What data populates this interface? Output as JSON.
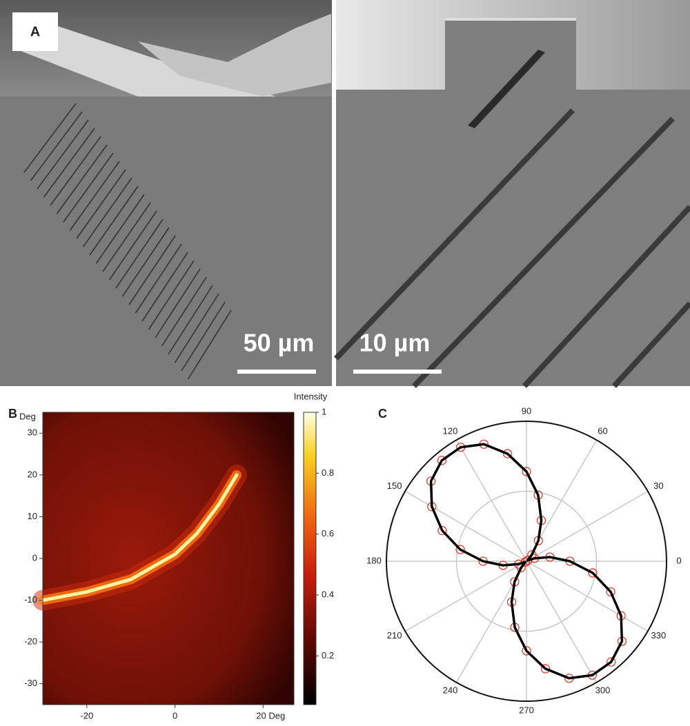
{
  "panels": {
    "a": "A",
    "b": "B",
    "c": "C"
  },
  "sem": {
    "left_scale": "50 µm",
    "right_scale": "10 µm"
  },
  "chart_data": [
    {
      "type": "heatmap",
      "colorbar_label": "Intensity",
      "ylabel": "Deg",
      "xlim": [
        -30,
        27
      ],
      "ylim": [
        -35,
        35
      ],
      "xticks": [
        -20,
        0,
        {
          "value": 20,
          "label": "20 Deg"
        }
      ],
      "yticks": [
        -30,
        -20,
        -10,
        0,
        10,
        20,
        30
      ],
      "clim": [
        0.04,
        1
      ],
      "cticks": [
        0.2,
        0.4,
        0.6,
        0.8,
        1
      ],
      "ridge": {
        "x": [
          -30,
          -20,
          -10,
          -5,
          0,
          5,
          10,
          14
        ],
        "y": [
          -10,
          -8,
          -5,
          -2,
          1,
          6,
          13,
          20
        ]
      }
    },
    {
      "type": "polar",
      "rlim": [
        0,
        1
      ],
      "rgrid": [
        0.5
      ],
      "theta_ticks": [
        0,
        30,
        60,
        90,
        120,
        150,
        180,
        210,
        240,
        270,
        300,
        330
      ],
      "theta": [
        0,
        10,
        20,
        30,
        40,
        50,
        60,
        70,
        80,
        90,
        100,
        110,
        120,
        130,
        140,
        150,
        160,
        170,
        180,
        190,
        200,
        210,
        220,
        230,
        240,
        250,
        260,
        270,
        280,
        290,
        300,
        310,
        320,
        330,
        340,
        350
      ],
      "series": [
        {
          "color": "#e8392a",
          "marker": "circle",
          "values": [
            0.31,
            0.17,
            0.06,
            0.01,
            0.01,
            0.06,
            0.17,
            0.31,
            0.48,
            0.64,
            0.78,
            0.89,
            0.94,
            0.94,
            0.89,
            0.78,
            0.64,
            0.48,
            0.31,
            0.17,
            0.06,
            0.01,
            0.01,
            0.06,
            0.17,
            0.31,
            0.48,
            0.64,
            0.78,
            0.89,
            0.94,
            0.94,
            0.89,
            0.78,
            0.64,
            0.48
          ]
        },
        {
          "color": "#000000",
          "marker": "line",
          "values": [
            0.31,
            0.17,
            0.06,
            0.01,
            0.01,
            0.06,
            0.17,
            0.31,
            0.48,
            0.64,
            0.78,
            0.89,
            0.94,
            0.94,
            0.89,
            0.78,
            0.64,
            0.48,
            0.31,
            0.17,
            0.06,
            0.01,
            0.01,
            0.06,
            0.17,
            0.31,
            0.48,
            0.64,
            0.78,
            0.89,
            0.94,
            0.94,
            0.89,
            0.78,
            0.64,
            0.48
          ]
        }
      ]
    }
  ]
}
